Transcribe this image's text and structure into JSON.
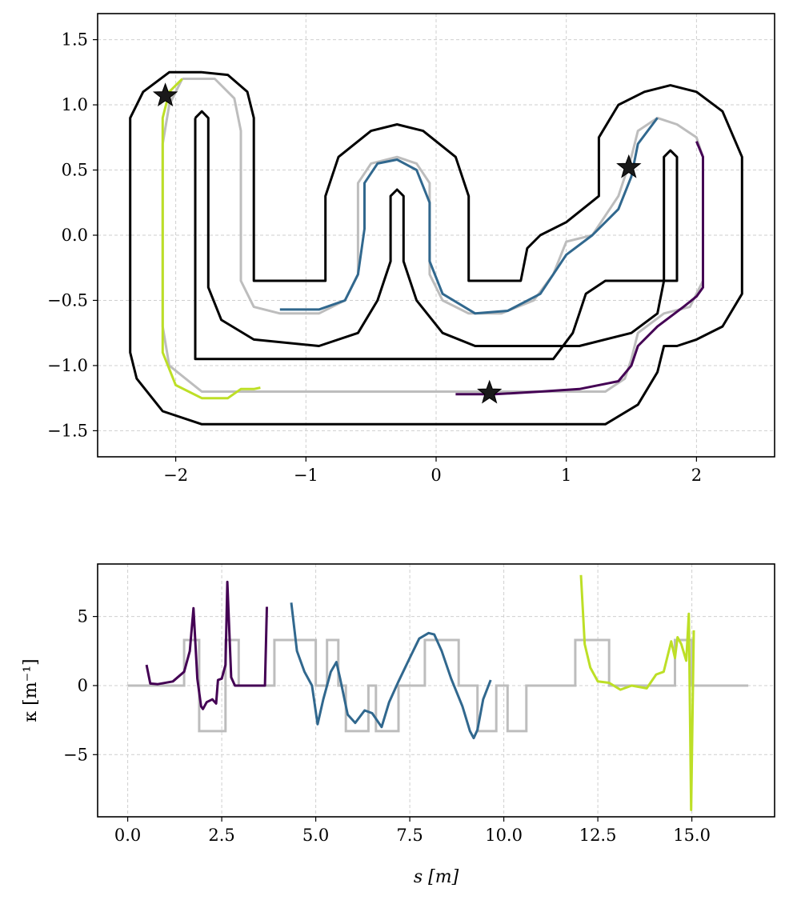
{
  "chart_data": [
    {
      "type": "line",
      "subtype": "track-map",
      "xlim": [
        -2.6,
        2.6
      ],
      "ylim": [
        -1.7,
        1.7
      ],
      "xticks": [
        "−2",
        "−1",
        "0",
        "1",
        "2"
      ],
      "yticks": [
        "1.5",
        "1.0",
        "0.5",
        "0.0",
        "−0.5",
        "−1.0",
        "−1.5"
      ],
      "grid": true,
      "track_boundary_color": "#000000",
      "reference_color": "#bdbdbd",
      "outer_boundary": [
        [
          -1.8,
          1.25
        ],
        [
          -1.6,
          1.23
        ],
        [
          -1.45,
          1.1
        ],
        [
          -1.4,
          0.9
        ],
        [
          -1.4,
          -0.35
        ],
        [
          -0.85,
          -0.35
        ],
        [
          -0.85,
          0.3
        ],
        [
          -0.75,
          0.6
        ],
        [
          -0.5,
          0.8
        ],
        [
          -0.3,
          0.85
        ],
        [
          -0.1,
          0.8
        ],
        [
          0.15,
          0.6
        ],
        [
          0.25,
          0.3
        ],
        [
          0.25,
          -0.35
        ],
        [
          0.65,
          -0.35
        ],
        [
          0.7,
          -0.1
        ],
        [
          0.8,
          0.0
        ],
        [
          1.0,
          0.1
        ],
        [
          1.25,
          0.3
        ],
        [
          1.25,
          0.75
        ],
        [
          1.4,
          1.0
        ],
        [
          1.6,
          1.1
        ],
        [
          1.8,
          1.15
        ],
        [
          2.0,
          1.1
        ],
        [
          2.2,
          0.95
        ],
        [
          2.35,
          0.6
        ],
        [
          2.35,
          -0.45
        ],
        [
          2.2,
          -0.7
        ],
        [
          2.0,
          -0.8
        ],
        [
          1.85,
          -0.85
        ],
        [
          1.75,
          -0.85
        ],
        [
          1.7,
          -1.05
        ],
        [
          1.55,
          -1.3
        ],
        [
          1.3,
          -1.45
        ],
        [
          -1.8,
          -1.45
        ],
        [
          -2.1,
          -1.35
        ],
        [
          -2.3,
          -1.1
        ],
        [
          -2.35,
          -0.9
        ],
        [
          -2.35,
          0.9
        ],
        [
          -2.25,
          1.1
        ],
        [
          -2.05,
          1.25
        ],
        [
          -1.8,
          1.25
        ]
      ],
      "inner_boundary": [
        [
          -1.85,
          0.9
        ],
        [
          -1.8,
          0.95
        ],
        [
          -1.75,
          0.9
        ],
        [
          -1.75,
          -0.4
        ],
        [
          -1.65,
          -0.65
        ],
        [
          -1.4,
          -0.8
        ],
        [
          -0.9,
          -0.85
        ],
        [
          -0.6,
          -0.75
        ],
        [
          -0.45,
          -0.5
        ],
        [
          -0.35,
          -0.2
        ],
        [
          -0.35,
          0.3
        ],
        [
          -0.3,
          0.35
        ],
        [
          -0.25,
          0.3
        ],
        [
          -0.25,
          -0.2
        ],
        [
          -0.15,
          -0.5
        ],
        [
          0.05,
          -0.75
        ],
        [
          0.3,
          -0.85
        ],
        [
          1.1,
          -0.85
        ],
        [
          1.5,
          -0.75
        ],
        [
          1.7,
          -0.6
        ],
        [
          1.75,
          -0.35
        ],
        [
          1.75,
          0.6
        ],
        [
          1.8,
          0.65
        ],
        [
          1.85,
          0.6
        ],
        [
          1.85,
          -0.35
        ],
        [
          1.3,
          -0.35
        ],
        [
          1.15,
          -0.45
        ],
        [
          1.1,
          -0.6
        ],
        [
          1.05,
          -0.75
        ],
        [
          0.9,
          -0.95
        ],
        [
          -1.85,
          -0.95
        ],
        [
          -1.85,
          0.9
        ]
      ],
      "reference_path": [
        [
          -1.95,
          1.2
        ],
        [
          -1.7,
          1.2
        ],
        [
          -1.55,
          1.05
        ],
        [
          -1.5,
          0.8
        ],
        [
          -1.5,
          -0.35
        ],
        [
          -1.4,
          -0.55
        ],
        [
          -1.2,
          -0.6
        ],
        [
          -0.9,
          -0.6
        ],
        [
          -0.7,
          -0.5
        ],
        [
          -0.6,
          -0.3
        ],
        [
          -0.6,
          0.4
        ],
        [
          -0.5,
          0.55
        ],
        [
          -0.3,
          0.6
        ],
        [
          -0.15,
          0.55
        ],
        [
          -0.05,
          0.4
        ],
        [
          -0.05,
          -0.3
        ],
        [
          0.05,
          -0.5
        ],
        [
          0.25,
          -0.6
        ],
        [
          0.5,
          -0.6
        ],
        [
          0.75,
          -0.5
        ],
        [
          0.9,
          -0.3
        ],
        [
          1.0,
          -0.05
        ],
        [
          1.2,
          0.0
        ],
        [
          1.4,
          0.3
        ],
        [
          1.5,
          0.6
        ],
        [
          1.55,
          0.8
        ],
        [
          1.7,
          0.9
        ],
        [
          1.85,
          0.85
        ],
        [
          2.0,
          0.75
        ],
        [
          2.05,
          0.6
        ],
        [
          2.05,
          -0.35
        ],
        [
          1.95,
          -0.55
        ],
        [
          1.75,
          -0.6
        ],
        [
          1.55,
          -0.75
        ],
        [
          1.5,
          -0.95
        ],
        [
          1.45,
          -1.1
        ],
        [
          1.3,
          -1.2
        ],
        [
          0.5,
          -1.2
        ],
        [
          -1.35,
          -1.2
        ],
        [
          -1.8,
          -1.2
        ],
        [
          -2.05,
          -1.0
        ],
        [
          -2.1,
          -0.7
        ],
        [
          -2.1,
          0.7
        ],
        [
          -2.05,
          1.0
        ],
        [
          -1.95,
          1.2
        ]
      ],
      "series": [
        {
          "color": "#440154",
          "points": [
            [
              0.15,
              -1.22
            ],
            [
              0.45,
              -1.22
            ],
            [
              0.8,
              -1.2
            ],
            [
              1.1,
              -1.18
            ],
            [
              1.4,
              -1.12
            ],
            [
              1.5,
              -1.0
            ],
            [
              1.55,
              -0.85
            ],
            [
              1.7,
              -0.7
            ],
            [
              1.9,
              -0.55
            ],
            [
              2.0,
              -0.47
            ],
            [
              2.05,
              -0.4
            ],
            [
              2.05,
              0.1
            ],
            [
              2.05,
              0.6
            ],
            [
              2.0,
              0.72
            ]
          ]
        },
        {
          "color": "#31688e",
          "points": [
            [
              -1.2,
              -0.57
            ],
            [
              -0.9,
              -0.57
            ],
            [
              -0.7,
              -0.5
            ],
            [
              -0.6,
              -0.3
            ],
            [
              -0.55,
              0.05
            ],
            [
              -0.55,
              0.4
            ],
            [
              -0.45,
              0.55
            ],
            [
              -0.3,
              0.58
            ],
            [
              -0.15,
              0.5
            ],
            [
              -0.05,
              0.25
            ],
            [
              -0.05,
              -0.2
            ],
            [
              0.05,
              -0.45
            ],
            [
              0.3,
              -0.6
            ],
            [
              0.55,
              -0.58
            ],
            [
              0.8,
              -0.45
            ],
            [
              1.0,
              -0.15
            ],
            [
              1.2,
              0.0
            ],
            [
              1.4,
              0.2
            ],
            [
              1.5,
              0.45
            ],
            [
              1.55,
              0.7
            ],
            [
              1.7,
              0.9
            ]
          ]
        },
        {
          "color": "#bddf26",
          "points": [
            [
              -1.95,
              1.2
            ],
            [
              -2.05,
              1.1
            ],
            [
              -2.1,
              0.9
            ],
            [
              -2.1,
              0.3
            ],
            [
              -2.1,
              -0.4
            ],
            [
              -2.1,
              -0.9
            ],
            [
              -2.0,
              -1.15
            ],
            [
              -1.8,
              -1.25
            ],
            [
              -1.6,
              -1.25
            ],
            [
              -1.5,
              -1.18
            ],
            [
              -1.4,
              -1.18
            ],
            [
              -1.35,
              -1.17
            ]
          ]
        }
      ],
      "start_markers": [
        [
          -2.08,
          1.07
        ],
        [
          1.48,
          0.52
        ],
        [
          0.41,
          -1.21
        ]
      ]
    },
    {
      "type": "line",
      "xlabel": "s [m]",
      "ylabel": "κ [m⁻¹]",
      "xlim": [
        -0.8,
        17.2
      ],
      "ylim": [
        -9.5,
        8.8
      ],
      "xticks": [
        "0.0",
        "2.5",
        "5.0",
        "7.5",
        "10.0",
        "12.5",
        "15.0"
      ],
      "yticks": [
        "5",
        "0",
        "−5"
      ],
      "grid": true,
      "reference_color": "#bdbdbd",
      "reference_curvature": [
        [
          0,
          0
        ],
        [
          1.5,
          0
        ],
        [
          1.5,
          3.3
        ],
        [
          1.9,
          3.3
        ],
        [
          1.9,
          -3.3
        ],
        [
          2.6,
          -3.3
        ],
        [
          2.6,
          3.3
        ],
        [
          2.95,
          3.3
        ],
        [
          2.95,
          0
        ],
        [
          3.9,
          0
        ],
        [
          3.9,
          3.3
        ],
        [
          5.0,
          3.3
        ],
        [
          5.0,
          0
        ],
        [
          5.3,
          0
        ],
        [
          5.3,
          3.3
        ],
        [
          5.6,
          3.3
        ],
        [
          5.6,
          0
        ],
        [
          5.8,
          0
        ],
        [
          5.8,
          -3.3
        ],
        [
          6.4,
          -3.3
        ],
        [
          6.4,
          0
        ],
        [
          6.6,
          0
        ],
        [
          6.6,
          -3.3
        ],
        [
          7.2,
          -3.3
        ],
        [
          7.2,
          0
        ],
        [
          7.9,
          0
        ],
        [
          7.9,
          3.3
        ],
        [
          8.8,
          3.3
        ],
        [
          8.8,
          0
        ],
        [
          9.3,
          0
        ],
        [
          9.3,
          -3.3
        ],
        [
          9.8,
          -3.3
        ],
        [
          9.8,
          0
        ],
        [
          10.1,
          0
        ],
        [
          10.1,
          -3.3
        ],
        [
          10.6,
          -3.3
        ],
        [
          10.6,
          0
        ],
        [
          11.9,
          0
        ],
        [
          11.9,
          3.3
        ],
        [
          12.8,
          3.3
        ],
        [
          12.8,
          0
        ],
        [
          14.55,
          0
        ],
        [
          14.55,
          3.3
        ],
        [
          15.0,
          3.3
        ],
        [
          15.0,
          0
        ],
        [
          16.5,
          0
        ]
      ],
      "series": [
        {
          "color": "#440154",
          "points": [
            [
              0.5,
              1.5
            ],
            [
              0.6,
              0.15
            ],
            [
              0.8,
              0.1
            ],
            [
              1.2,
              0.3
            ],
            [
              1.5,
              1.0
            ],
            [
              1.65,
              2.5
            ],
            [
              1.75,
              5.6
            ],
            [
              1.85,
              0.5
            ],
            [
              1.95,
              -1.5
            ],
            [
              2.0,
              -1.7
            ],
            [
              2.1,
              -1.2
            ],
            [
              2.25,
              -1.0
            ],
            [
              2.35,
              -1.3
            ],
            [
              2.4,
              0.4
            ],
            [
              2.5,
              0.5
            ],
            [
              2.6,
              1.5
            ],
            [
              2.65,
              7.5
            ],
            [
              2.75,
              0.6
            ],
            [
              2.85,
              0.0
            ],
            [
              3.3,
              0.0
            ],
            [
              3.65,
              0.0
            ],
            [
              3.7,
              5.7
            ]
          ]
        },
        {
          "color": "#31688e",
          "points": [
            [
              4.35,
              6.0
            ],
            [
              4.5,
              2.5
            ],
            [
              4.7,
              1.0
            ],
            [
              4.9,
              0.0
            ],
            [
              5.05,
              -2.8
            ],
            [
              5.2,
              -1.0
            ],
            [
              5.4,
              1.0
            ],
            [
              5.55,
              1.7
            ],
            [
              5.65,
              0.5
            ],
            [
              5.85,
              -2.1
            ],
            [
              6.05,
              -2.7
            ],
            [
              6.3,
              -1.8
            ],
            [
              6.5,
              -2.0
            ],
            [
              6.75,
              -3.0
            ],
            [
              6.95,
              -1.2
            ],
            [
              7.2,
              0.3
            ],
            [
              7.5,
              2.0
            ],
            [
              7.75,
              3.4
            ],
            [
              8.0,
              3.8
            ],
            [
              8.15,
              3.7
            ],
            [
              8.35,
              2.5
            ],
            [
              8.6,
              0.5
            ],
            [
              8.9,
              -1.5
            ],
            [
              9.1,
              -3.3
            ],
            [
              9.2,
              -3.8
            ],
            [
              9.3,
              -3.2
            ],
            [
              9.45,
              -1.0
            ],
            [
              9.65,
              0.4
            ]
          ]
        },
        {
          "color": "#bddf26",
          "points": [
            [
              12.05,
              8.0
            ],
            [
              12.15,
              3.0
            ],
            [
              12.3,
              1.3
            ],
            [
              12.5,
              0.3
            ],
            [
              12.8,
              0.2
            ],
            [
              13.1,
              -0.3
            ],
            [
              13.4,
              0.0
            ],
            [
              13.8,
              -0.2
            ],
            [
              14.05,
              0.8
            ],
            [
              14.25,
              1.0
            ],
            [
              14.45,
              3.2
            ],
            [
              14.55,
              2.0
            ],
            [
              14.62,
              3.5
            ],
            [
              14.72,
              3.0
            ],
            [
              14.85,
              1.8
            ],
            [
              14.92,
              5.2
            ],
            [
              14.98,
              -9.0
            ],
            [
              15.05,
              4.0
            ]
          ]
        }
      ]
    }
  ]
}
